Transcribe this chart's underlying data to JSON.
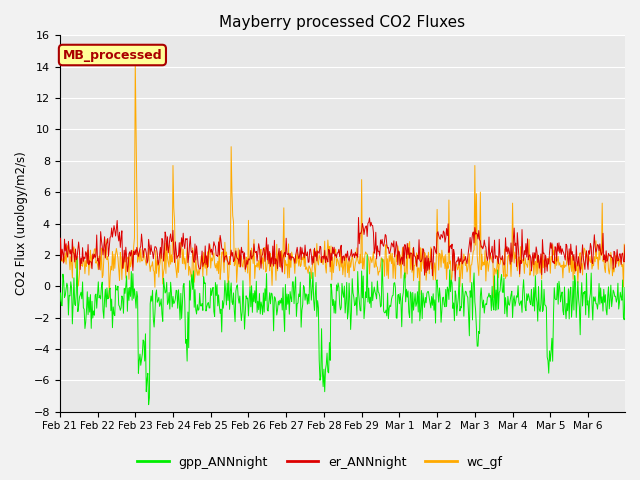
{
  "title": "Mayberry processed CO2 Fluxes",
  "ylabel": "CO2 Flux (urology/m2/s)",
  "ylim": [
    -8,
    16
  ],
  "yticks": [
    -8,
    -6,
    -4,
    -2,
    0,
    2,
    4,
    6,
    8,
    10,
    12,
    14,
    16
  ],
  "legend_label": "MB_processed",
  "legend_box_color": "#ffff99",
  "legend_box_edge": "#aa0000",
  "legend_text_color": "#aa0000",
  "color_gpp": "#00ee00",
  "color_er": "#dd0000",
  "color_wc": "#ffaa00",
  "line_width": 0.7,
  "bg_color": "#e8e8e8",
  "grid_color": "#ffffff",
  "series_labels": [
    "gpp_ANNnight",
    "er_ANNnight",
    "wc_gf"
  ],
  "seed": 12345
}
